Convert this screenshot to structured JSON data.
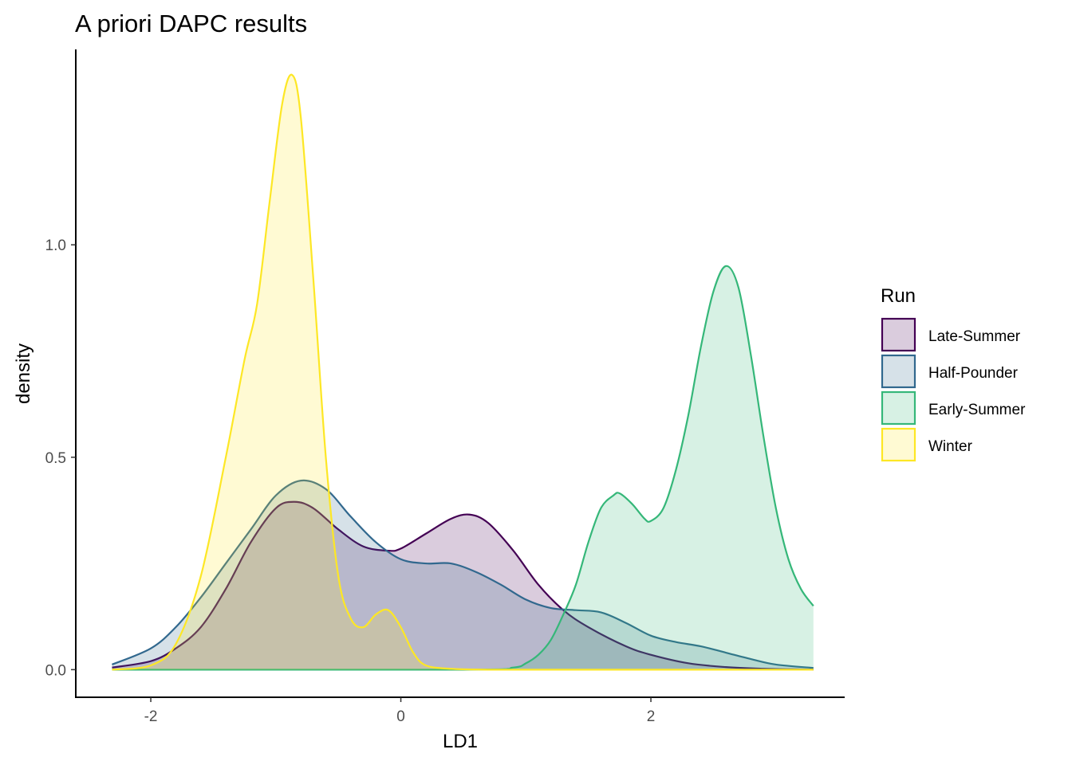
{
  "chart_data": {
    "type": "area",
    "title": "A priori DAPC results",
    "xlabel": "LD1",
    "ylabel": "density",
    "xlim": [
      -2.6,
      3.55
    ],
    "ylim": [
      -0.065,
      1.46
    ],
    "x_ticks": [
      -2,
      0,
      2
    ],
    "x_tick_labels": [
      "-2",
      "0",
      "2"
    ],
    "y_ticks": [
      0.0,
      0.5,
      1.0
    ],
    "y_tick_labels": [
      "0.0",
      "0.5",
      "1.0"
    ],
    "grid": false,
    "legend": {
      "title": "Run",
      "position": "right"
    },
    "series": [
      {
        "name": "Late-Summer",
        "color": "#440154",
        "fill_opacity": 0.2,
        "x": [
          -2.31,
          -2.0,
          -1.8,
          -1.6,
          -1.4,
          -1.2,
          -1.0,
          -0.85,
          -0.7,
          -0.5,
          -0.3,
          -0.1,
          0.0,
          0.2,
          0.4,
          0.55,
          0.7,
          0.9,
          1.1,
          1.3,
          1.5,
          1.8,
          2.0,
          2.3,
          2.6,
          2.9,
          3.1,
          3.3
        ],
        "y": [
          0.005,
          0.02,
          0.05,
          0.1,
          0.19,
          0.3,
          0.38,
          0.395,
          0.38,
          0.33,
          0.29,
          0.28,
          0.285,
          0.32,
          0.355,
          0.365,
          0.345,
          0.28,
          0.2,
          0.14,
          0.1,
          0.055,
          0.035,
          0.015,
          0.006,
          0.002,
          0.001,
          0.0
        ]
      },
      {
        "name": "Half-Pounder",
        "color": "#31688e",
        "fill_opacity": 0.2,
        "x": [
          -2.31,
          -2.0,
          -1.8,
          -1.6,
          -1.4,
          -1.2,
          -1.0,
          -0.8,
          -0.6,
          -0.4,
          -0.2,
          0.0,
          0.2,
          0.4,
          0.6,
          0.8,
          1.0,
          1.2,
          1.4,
          1.6,
          1.8,
          2.0,
          2.2,
          2.4,
          2.6,
          2.8,
          3.0,
          3.3
        ],
        "y": [
          0.012,
          0.05,
          0.1,
          0.17,
          0.25,
          0.33,
          0.41,
          0.445,
          0.425,
          0.36,
          0.3,
          0.26,
          0.25,
          0.25,
          0.23,
          0.2,
          0.165,
          0.145,
          0.14,
          0.135,
          0.11,
          0.08,
          0.065,
          0.055,
          0.04,
          0.025,
          0.012,
          0.004
        ]
      },
      {
        "name": "Early-Summer",
        "color": "#35b779",
        "fill_opacity": 0.2,
        "x": [
          -2.31,
          0.5,
          0.9,
          1.0,
          1.1,
          1.2,
          1.3,
          1.4,
          1.5,
          1.6,
          1.7,
          1.75,
          1.85,
          1.95,
          2.0,
          2.1,
          2.2,
          2.3,
          2.4,
          2.5,
          2.6,
          2.7,
          2.8,
          2.9,
          3.0,
          3.1,
          3.2,
          3.3
        ],
        "y": [
          0.0,
          0.0,
          0.005,
          0.015,
          0.035,
          0.07,
          0.13,
          0.2,
          0.3,
          0.38,
          0.41,
          0.415,
          0.39,
          0.355,
          0.35,
          0.38,
          0.47,
          0.6,
          0.76,
          0.89,
          0.95,
          0.9,
          0.74,
          0.55,
          0.38,
          0.26,
          0.19,
          0.15
        ]
      },
      {
        "name": "Winter",
        "color": "#fde725",
        "fill_opacity": 0.2,
        "x": [
          -2.31,
          -2.0,
          -1.8,
          -1.6,
          -1.4,
          -1.25,
          -1.15,
          -1.05,
          -0.95,
          -0.87,
          -0.8,
          -0.7,
          -0.6,
          -0.5,
          -0.4,
          -0.3,
          -0.2,
          -0.1,
          0.0,
          0.1,
          0.2,
          0.4,
          0.7,
          1.0,
          1.5,
          2.0,
          2.5,
          3.3
        ],
        "y": [
          0.0,
          0.01,
          0.06,
          0.22,
          0.5,
          0.73,
          0.86,
          1.1,
          1.33,
          1.4,
          1.3,
          0.92,
          0.5,
          0.22,
          0.12,
          0.1,
          0.13,
          0.14,
          0.1,
          0.04,
          0.01,
          0.002,
          0.0,
          0.0,
          0.0,
          0.0,
          0.0,
          0.0
        ]
      }
    ]
  }
}
